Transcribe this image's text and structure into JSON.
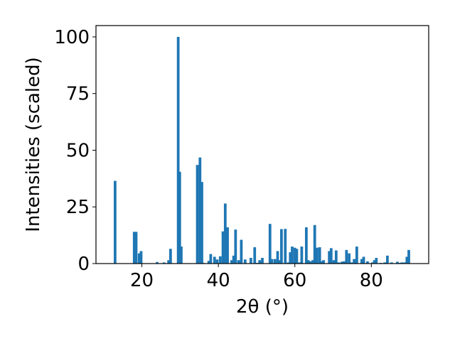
{
  "chart_data": {
    "type": "bar",
    "title": "",
    "xlabel": "2θ (°)",
    "ylabel": "Intensities (scaled)",
    "xlim": [
      8,
      95
    ],
    "ylim": [
      0,
      105
    ],
    "xticks": [
      20,
      40,
      60,
      80
    ],
    "yticks": [
      0,
      25,
      50,
      75,
      100
    ],
    "grid": false,
    "bar_color": "#1f77b4",
    "bar_width": 0.7,
    "x": [
      13.0,
      18.0,
      18.5,
      19.3,
      19.8,
      24.0,
      25.8,
      27.0,
      27.5,
      29.5,
      29.9,
      30.3,
      34.5,
      35.2,
      35.7,
      36.0,
      37.5,
      38.0,
      39.0,
      39.7,
      40.5,
      41.2,
      41.8,
      42.4,
      43.5,
      44.0,
      44.5,
      45.3,
      46.0,
      47.0,
      48.5,
      49.5,
      50.2,
      50.8,
      51.5,
      53.5,
      54.0,
      54.8,
      55.5,
      56.0,
      56.5,
      57.5,
      58.3,
      58.8,
      59.3,
      60.0,
      60.5,
      61.2,
      61.8,
      63.0,
      63.5,
      64.0,
      64.7,
      65.2,
      65.8,
      66.5,
      67.0,
      67.5,
      69.0,
      69.5,
      70.2,
      70.8,
      71.5,
      72.3,
      72.8,
      73.5,
      74.2,
      74.8,
      75.5,
      76.2,
      77.5,
      78.0,
      79.0,
      80.3,
      80.8,
      81.3,
      82.5,
      83.5,
      84.2,
      85.3,
      86.8,
      87.5,
      88.0,
      88.7,
      89.3,
      89.8
    ],
    "values": [
      36.5,
      14.0,
      14.0,
      4.5,
      5.5,
      0.7,
      0.5,
      1.5,
      6.5,
      100.0,
      40.5,
      7.5,
      43.5,
      46.8,
      36.0,
      0.3,
      1.2,
      4.2,
      3.0,
      1.8,
      3.2,
      14.2,
      26.5,
      16.0,
      1.5,
      3.5,
      15.0,
      1.5,
      10.5,
      1.8,
      2.5,
      7.2,
      0.3,
      1.5,
      2.5,
      17.5,
      2.0,
      2.0,
      5.5,
      1.5,
      15.2,
      15.3,
      0.5,
      5.0,
      7.5,
      7.0,
      6.5,
      0.5,
      7.5,
      16.0,
      1.5,
      1.0,
      1.5,
      17.0,
      7.0,
      7.2,
      1.0,
      1.5,
      5.5,
      6.8,
      1.5,
      5.8,
      0.5,
      0.8,
      1.0,
      6.0,
      4.5,
      0.5,
      2.0,
      7.5,
      2.0,
      3.0,
      1.0,
      0.5,
      1.5,
      2.5,
      0.3,
      0.5,
      3.5,
      0.5,
      0.8,
      0.3,
      0.5,
      0.5,
      3.0,
      6.0
    ]
  }
}
